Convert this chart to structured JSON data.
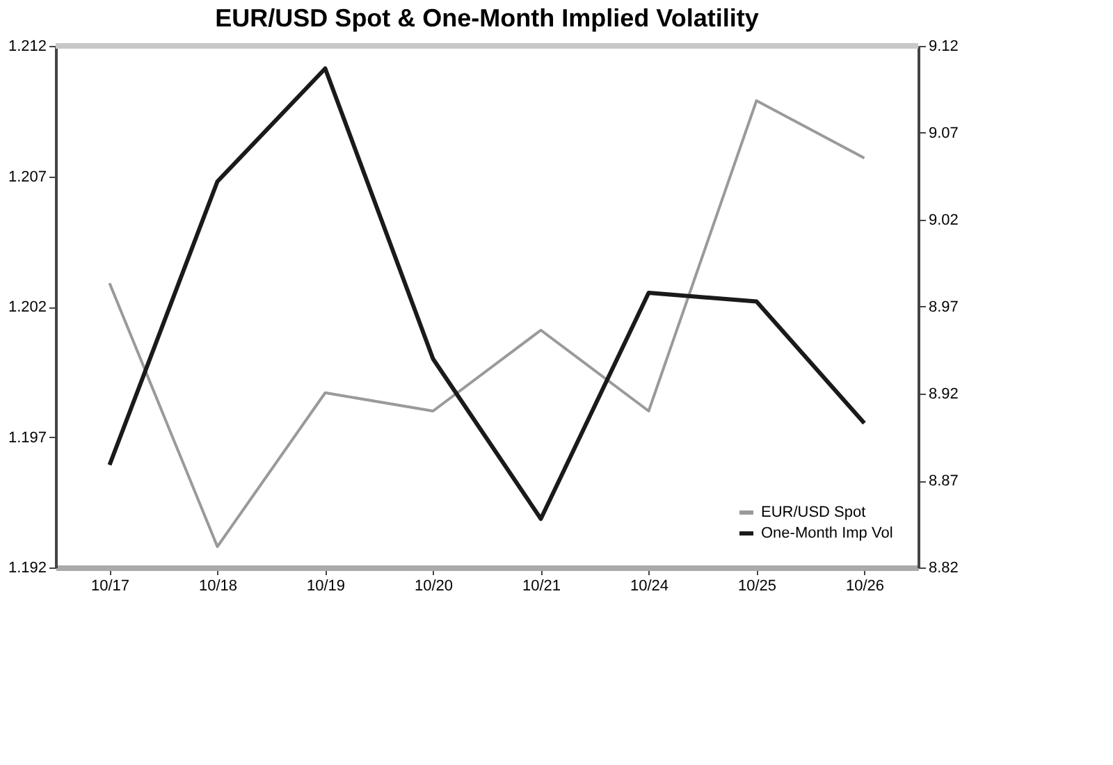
{
  "chart_data": {
    "type": "line",
    "title": "EUR/USD Spot & One-Month Implied Volatility",
    "categories": [
      "10/17",
      "10/18",
      "10/19",
      "10/20",
      "10/21",
      "10/24",
      "10/25",
      "10/26"
    ],
    "series": [
      {
        "name": "EUR/USD Spot",
        "color": "#9a9a9a",
        "values": [
          1.2029,
          1.1928,
          1.1987,
          1.198,
          1.2011,
          1.198,
          1.2099,
          1.2077
        ]
      },
      {
        "name": "One-Month Imp Vol",
        "color": "#1a1a1a",
        "axis": "y2",
        "values": [
          8.879,
          9.042,
          9.107,
          8.94,
          8.848,
          8.978,
          8.973,
          8.903
        ]
      }
    ],
    "ylim": [
      1.192,
      1.212
    ],
    "yticks": [
      1.192,
      1.197,
      1.202,
      1.207,
      1.212
    ],
    "y2lim": [
      8.82,
      9.12
    ],
    "y2ticks": [
      8.82,
      8.87,
      8.92,
      8.97,
      9.02,
      9.07,
      9.12
    ],
    "grid": false,
    "legend": "bottom right",
    "marker": "none",
    "line_style": "solid"
  }
}
